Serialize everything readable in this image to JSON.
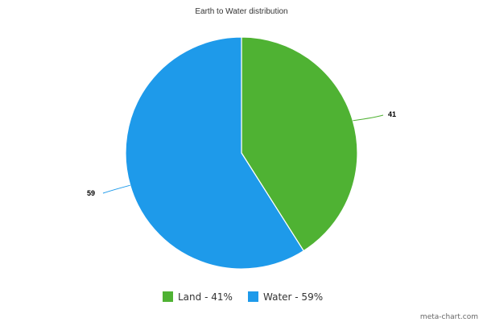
{
  "chart_data": {
    "type": "pie",
    "title": "Earth to Water distribution",
    "slices": [
      {
        "label": "Land",
        "value": 41,
        "data_label": "41",
        "legend": "Land - 41%",
        "color": "#4fb233"
      },
      {
        "label": "Water",
        "value": 59,
        "data_label": "59",
        "legend": "Water - 59%",
        "color": "#1e9aea"
      }
    ],
    "legend_position": "bottom",
    "start_angle": "12 o'clock",
    "direction": "clockwise"
  },
  "watermark": "meta-chart.com",
  "colors": {
    "background": "#ffffff",
    "slice_border": "#ffffff"
  }
}
